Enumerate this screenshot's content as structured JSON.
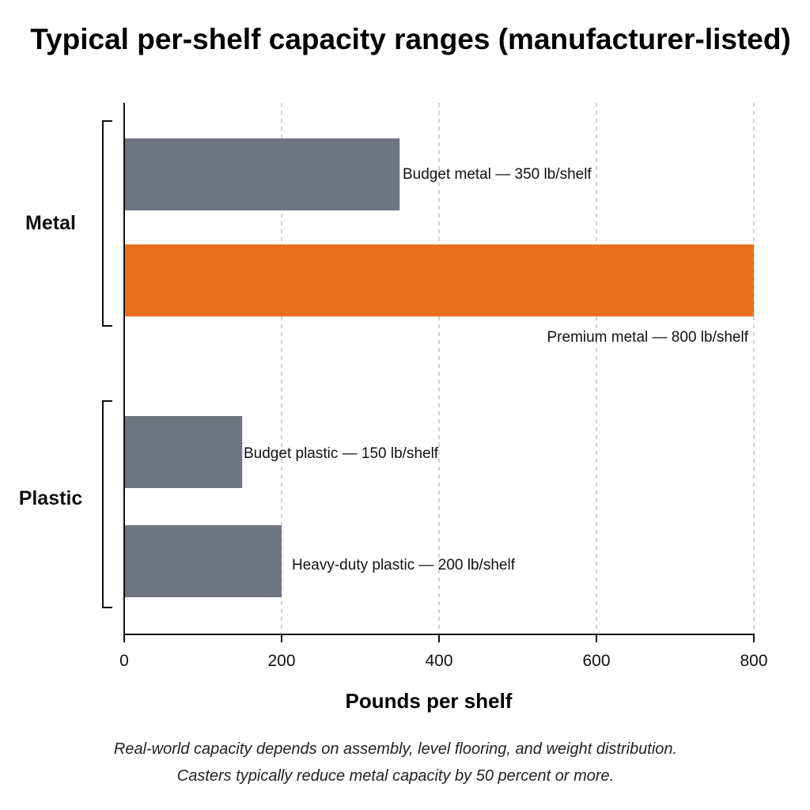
{
  "chart_data": {
    "type": "bar",
    "orientation": "horizontal",
    "title": "Typical per-shelf capacity ranges (manufacturer-listed)",
    "xlabel": "Pounds per shelf",
    "ylabel": "",
    "xlim": [
      0,
      800
    ],
    "xticks": [
      "0",
      "200",
      "400",
      "600",
      "800"
    ],
    "grid": "vertical dashed",
    "groups": [
      {
        "name": "Metal",
        "bars": [
          {
            "label": "Budget metal — 350 lb/shelf",
            "value": 350,
            "color": "#6f7580"
          },
          {
            "label": "Premium metal — 800 lb/shelf",
            "value": 800,
            "color": "#e8701c"
          }
        ]
      },
      {
        "name": "Plastic",
        "bars": [
          {
            "label": "Budget plastic — 150 lb/shelf",
            "value": 150,
            "color": "#6f7580"
          },
          {
            "label": "Heavy-duty plastic — 200 lb/shelf",
            "value": 200,
            "color": "#6f7580"
          }
        ]
      }
    ],
    "notes": [
      "Real-world capacity depends on assembly, level flooring, and weight distribution.",
      "Casters typically reduce metal capacity by 50 percent or more."
    ]
  }
}
